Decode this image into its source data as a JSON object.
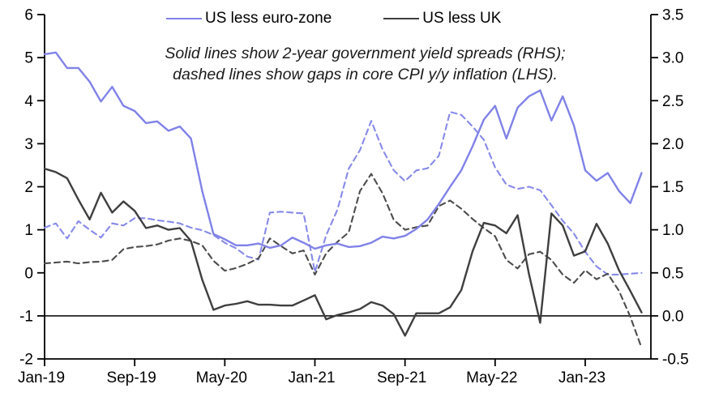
{
  "chart_data": {
    "type": "line",
    "title": "",
    "annotation": {
      "line1": "Solid lines show 2-year government yield spreads (RHS);",
      "line2": "dashed lines show gaps in core CPI y/y inflation (LHS)."
    },
    "legend": [
      {
        "label": "US less euro-zone",
        "color": "#8082e8"
      },
      {
        "label": "US less UK",
        "color": "#3f3f3f"
      }
    ],
    "x_axis": {
      "tick_labels": [
        "Jan-19",
        "Sep-19",
        "May-20",
        "Jan-21",
        "Sep-21",
        "May-22",
        "Jan-23"
      ],
      "tick_indices": [
        0,
        8,
        16,
        24,
        32,
        40,
        48
      ],
      "n_points": 54,
      "start_month": "Jan-19",
      "end_month": "Jun-23"
    },
    "left_axis": {
      "min": -2,
      "max": 6,
      "tick_labels": [
        "6",
        "5",
        "4",
        "3",
        "2",
        "1",
        "0",
        "-1",
        "-2"
      ],
      "tick_values": [
        6,
        5,
        4,
        3,
        2,
        1,
        0,
        -1,
        -2
      ]
    },
    "right_axis": {
      "min": -0.5,
      "max": 3.5,
      "tick_labels": [
        "3.5",
        "3.0",
        "2.5",
        "2.0",
        "1.5",
        "1.0",
        "0.5",
        "0.0",
        "-0.5"
      ],
      "tick_values": [
        3.5,
        3.0,
        2.5,
        2.0,
        1.5,
        1.0,
        0.5,
        0.0,
        -0.5
      ]
    },
    "zero_line_left_value": -1,
    "grid": false,
    "series": [
      {
        "name": "US less euro-zone core CPI inflation gap",
        "axis": "left",
        "style": "dashed",
        "color": "#878ae9",
        "values": [
          1.05,
          1.15,
          0.8,
          1.2,
          1.0,
          0.82,
          1.15,
          1.1,
          1.27,
          1.27,
          1.22,
          1.19,
          1.15,
          1.05,
          0.99,
          0.88,
          0.7,
          0.57,
          0.38,
          0.31,
          1.4,
          1.42,
          1.4,
          1.38,
          0.02,
          0.87,
          1.47,
          2.42,
          2.85,
          3.53,
          2.87,
          2.38,
          2.13,
          2.38,
          2.43,
          2.72,
          3.74,
          3.67,
          3.4,
          3.09,
          2.45,
          2.05,
          1.95,
          2.0,
          1.92,
          1.57,
          1.21,
          0.91,
          0.49,
          0.15,
          -0.04,
          -0.04,
          -0.02,
          0.0
        ]
      },
      {
        "name": "US less UK core CPI inflation gap",
        "axis": "left",
        "style": "dashed",
        "color": "#4c4c4c",
        "values": [
          0.22,
          0.24,
          0.26,
          0.22,
          0.25,
          0.26,
          0.3,
          0.55,
          0.6,
          0.62,
          0.66,
          0.75,
          0.8,
          0.74,
          0.64,
          0.28,
          0.05,
          0.11,
          0.21,
          0.34,
          0.8,
          0.62,
          0.45,
          0.52,
          -0.04,
          0.45,
          0.72,
          0.94,
          1.9,
          2.3,
          1.85,
          1.23,
          1.0,
          1.06,
          1.1,
          1.55,
          1.68,
          1.49,
          1.25,
          1.04,
          0.85,
          0.3,
          0.1,
          0.43,
          0.49,
          0.3,
          -0.04,
          -0.23,
          0.06,
          -0.15,
          -0.02,
          -0.42,
          -1.02,
          -1.74
        ]
      },
      {
        "name": "US less UK 2-year government yield spread",
        "axis": "right",
        "style": "solid",
        "color": "#3f3f3f",
        "values": [
          1.71,
          1.67,
          1.6,
          1.35,
          1.12,
          1.43,
          1.2,
          1.33,
          1.22,
          1.02,
          1.05,
          1.0,
          1.02,
          0.87,
          0.42,
          0.07,
          0.12,
          0.14,
          0.17,
          0.13,
          0.13,
          0.12,
          0.12,
          0.18,
          0.24,
          -0.04,
          0.01,
          0.04,
          0.08,
          0.16,
          0.12,
          0.02,
          -0.23,
          0.03,
          0.03,
          0.03,
          0.1,
          0.3,
          0.75,
          1.08,
          1.05,
          0.96,
          1.17,
          0.49,
          -0.08,
          1.19,
          1.05,
          0.7,
          0.75,
          1.07,
          0.84,
          0.53,
          0.29,
          0.04
        ]
      },
      {
        "name": "US less euro-zone 2-year government yield spread",
        "axis": "right",
        "style": "solid",
        "color": "#8082e8",
        "values": [
          3.04,
          3.06,
          2.88,
          2.88,
          2.72,
          2.49,
          2.66,
          2.44,
          2.38,
          2.24,
          2.26,
          2.15,
          2.2,
          2.06,
          1.45,
          0.95,
          0.89,
          0.82,
          0.82,
          0.84,
          0.79,
          0.82,
          0.91,
          0.85,
          0.78,
          0.82,
          0.84,
          0.8,
          0.81,
          0.85,
          0.92,
          0.9,
          0.93,
          1.01,
          1.12,
          1.3,
          1.5,
          1.69,
          1.97,
          2.28,
          2.44,
          2.06,
          2.42,
          2.55,
          2.62,
          2.27,
          2.55,
          2.21,
          1.69,
          1.57,
          1.66,
          1.45,
          1.31,
          1.66
        ]
      }
    ]
  }
}
